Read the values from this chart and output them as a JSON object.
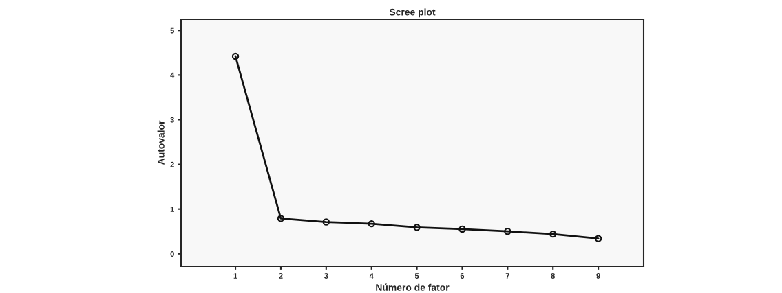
{
  "chart_data": {
    "type": "line",
    "title": "Scree plot",
    "xlabel": "Número de fator",
    "ylabel": "Autovalor",
    "x": [
      1,
      2,
      3,
      4,
      5,
      6,
      7,
      8,
      9
    ],
    "values": [
      4.42,
      0.79,
      0.71,
      0.67,
      0.59,
      0.55,
      0.5,
      0.44,
      0.34
    ],
    "color": "#111111",
    "marker": "circle",
    "line_style": "solid",
    "xlim": [
      -0.2,
      10
    ],
    "xticks": [
      1,
      2,
      3,
      4,
      5,
      6,
      7,
      8,
      9
    ],
    "ylim": [
      -0.28,
      5.25
    ],
    "yticks": [
      0,
      1,
      2,
      3,
      4,
      5
    ],
    "grid": false,
    "legend": false
  }
}
